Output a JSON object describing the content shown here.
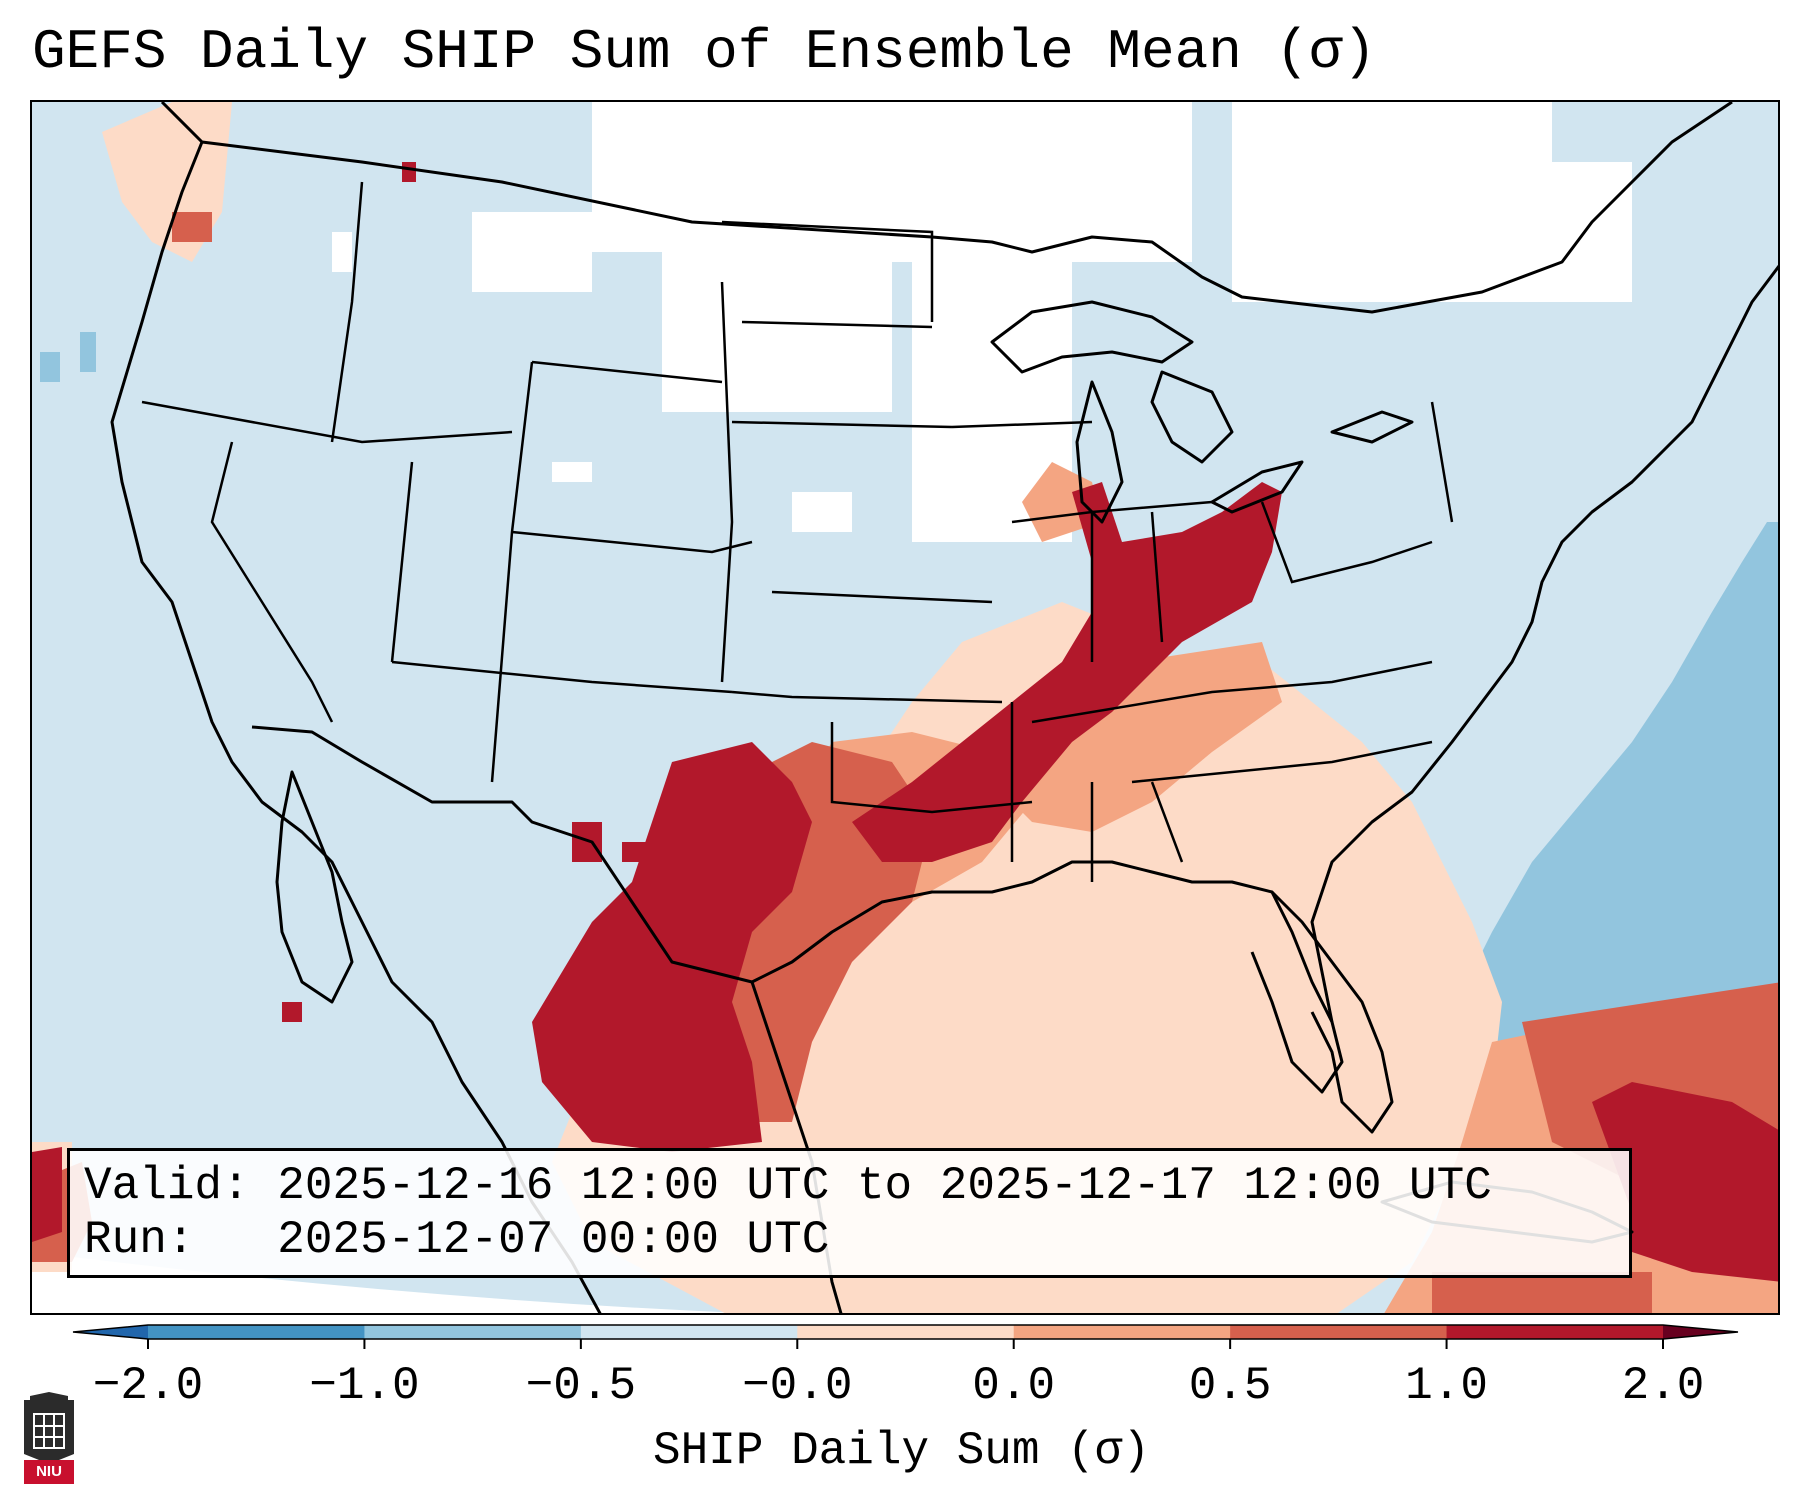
{
  "title": "GEFS Daily SHIP Sum of Ensemble Mean (σ)",
  "info": {
    "valid_label": "Valid:",
    "valid_value": "2025-12-16 12:00 UTC to 2025-12-17 12:00 UTC",
    "run_label": "Run:",
    "run_value": "2025-12-07 00:00 UTC"
  },
  "colorbar": {
    "ticks": [
      "−2.0",
      "−1.0",
      "−0.5",
      "−0.0",
      "0.0",
      "0.5",
      "1.0",
      "2.0"
    ],
    "colors": [
      "#4393c3",
      "#92c5de",
      "#d1e5f0",
      "#fddbc7",
      "#f4a582",
      "#d6604d",
      "#b2182b"
    ],
    "label": "SHIP Daily Sum (σ)"
  },
  "palette": {
    "base": "#d1e5f0",
    "white": "#ffffff",
    "light_blue": "#92c5de",
    "light_red": "#fddbc7",
    "mid_red": "#f4a582",
    "red": "#d6604d",
    "dark_red": "#b2182b"
  },
  "logo": {
    "text": "NIU"
  }
}
